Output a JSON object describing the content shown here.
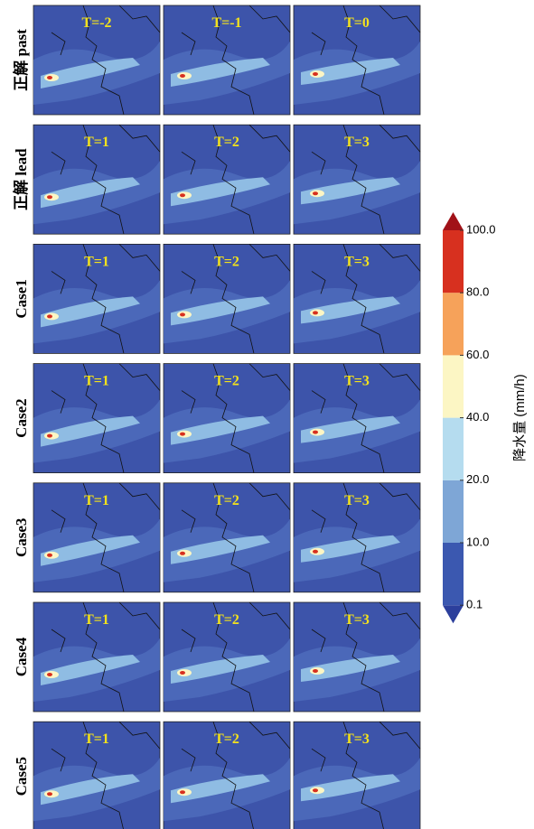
{
  "rows": [
    {
      "label": "正解 past",
      "panels": [
        "T=-2",
        "T=-1",
        "T=0"
      ]
    },
    {
      "label": "正解 lead",
      "panels": [
        "T=1",
        "T=2",
        "T=3"
      ]
    },
    {
      "label": "Case1",
      "panels": [
        "T=1",
        "T=2",
        "T=3"
      ]
    },
    {
      "label": "Case2",
      "panels": [
        "T=1",
        "T=2",
        "T=3"
      ]
    },
    {
      "label": "Case3",
      "panels": [
        "T=1",
        "T=2",
        "T=3"
      ]
    },
    {
      "label": "Case4",
      "panels": [
        "T=1",
        "T=2",
        "T=3"
      ]
    },
    {
      "label": "Case5",
      "panels": [
        "T=1",
        "T=2",
        "T=3"
      ]
    }
  ],
  "colorbar": {
    "label": "降水量 (mm/h)",
    "ticks": [
      {
        "value": 0.1,
        "label": "0.1"
      },
      {
        "value": 10,
        "label": "10.0"
      },
      {
        "value": 20,
        "label": "20.0"
      },
      {
        "value": 40,
        "label": "40.0"
      },
      {
        "value": 60,
        "label": "60.0"
      },
      {
        "value": 80,
        "label": "80.0"
      },
      {
        "value": 100,
        "label": "100.0"
      }
    ],
    "colors": [
      "#2c3f9c",
      "#3b58b0",
      "#7ea6d6",
      "#b5dcef",
      "#fcf6c4",
      "#f6a25a",
      "#d7301f",
      "#a11218"
    ]
  }
}
